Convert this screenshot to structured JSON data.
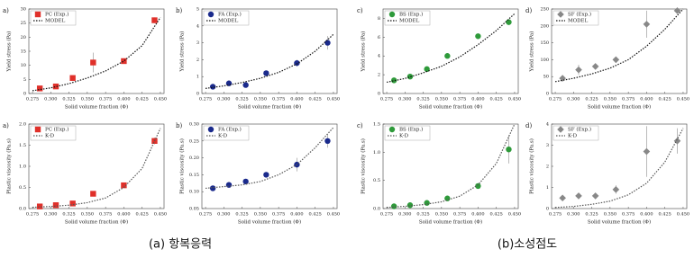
{
  "captions": [
    "(a) 항복응력",
    "(b)소성점도"
  ],
  "chart_data": [
    {
      "type": "scatter",
      "panel": "a)",
      "ylabel": "Yield stress (Pa)",
      "xlabel": "Solid volume fraction (Φ)",
      "xlim": [
        0.27,
        0.455
      ],
      "ylim": [
        0,
        30
      ],
      "xticks": [
        0.275,
        {
          "value": 0.3,
          "label": "0.300"
        },
        0.325,
        {
          "value": 0.35,
          "label": "0.350"
        },
        0.375,
        {
          "value": 0.4,
          "label": "0.400"
        },
        0.425,
        {
          "value": 0.45,
          "label": "0.450"
        }
      ],
      "yticks": [
        0,
        5,
        10,
        15,
        20,
        25,
        30
      ],
      "series": [
        {
          "name": "PC (Exp.)",
          "color": "#e0302a",
          "marker": "square",
          "x": [
            0.285,
            0.307,
            0.33,
            0.358,
            0.4,
            0.442
          ],
          "values": [
            1.8,
            2.5,
            5.5,
            11,
            11.5,
            26
          ],
          "errors": [
            0.3,
            0.3,
            0.6,
            3.5,
            0.6,
            1
          ]
        },
        {
          "name": "MODEL",
          "color": "#111111",
          "marker": "line",
          "x": [
            0.275,
            0.3,
            0.325,
            0.35,
            0.375,
            0.4,
            0.425,
            0.45
          ],
          "values": [
            1,
            2,
            3.5,
            5.5,
            8,
            11.5,
            17,
            27
          ]
        }
      ]
    },
    {
      "type": "scatter",
      "panel": "b)",
      "ylabel": "Yield stress (Pa)",
      "xlabel": "Solid volume fraction (Φ)",
      "xlim": [
        0.27,
        0.455
      ],
      "ylim": [
        0,
        5
      ],
      "xticks": [
        0.275,
        {
          "value": 0.3,
          "label": "0.300"
        },
        0.325,
        {
          "value": 0.35,
          "label": "0.350"
        },
        0.375,
        {
          "value": 0.4,
          "label": "0.400"
        },
        0.425,
        {
          "value": 0.45,
          "label": "0.450"
        }
      ],
      "yticks": [
        0,
        1,
        2,
        3,
        4,
        5
      ],
      "series": [
        {
          "name": "FA (Exp.)",
          "color": "#1a2a8c",
          "marker": "circle",
          "x": [
            0.285,
            0.307,
            0.33,
            0.358,
            0.4,
            0.442
          ],
          "values": [
            0.4,
            0.6,
            0.5,
            1.2,
            1.8,
            3.0
          ],
          "errors": [
            0.05,
            0.1,
            0.1,
            0.15,
            0.2,
            0.4
          ]
        },
        {
          "name": "MODEL",
          "color": "#111111",
          "marker": "line",
          "x": [
            0.275,
            0.3,
            0.325,
            0.35,
            0.375,
            0.4,
            0.425,
            0.45
          ],
          "values": [
            0.3,
            0.45,
            0.65,
            0.9,
            1.25,
            1.75,
            2.5,
            3.5
          ]
        }
      ]
    },
    {
      "type": "scatter",
      "panel": "c)",
      "ylabel": "Yield stress (Pa)",
      "xlabel": "Solid volume fraction (Φ)",
      "xlim": [
        0.27,
        0.455
      ],
      "ylim": [
        0,
        9
      ],
      "xticks": [
        0.275,
        {
          "value": 0.3,
          "label": "0.300"
        },
        0.325,
        {
          "value": 0.35,
          "label": "0.350"
        },
        0.375,
        {
          "value": 0.4,
          "label": "0.400"
        },
        0.425,
        {
          "value": 0.45,
          "label": "0.450"
        }
      ],
      "yticks": [
        0,
        2,
        4,
        6,
        8
      ],
      "series": [
        {
          "name": "BS (Exp.)",
          "color": "#2e9a3a",
          "marker": "circle",
          "x": [
            0.285,
            0.307,
            0.33,
            0.358,
            0.4,
            0.442
          ],
          "values": [
            1.4,
            1.8,
            2.6,
            4.0,
            6.1,
            7.6
          ],
          "errors": [
            0.1,
            0.1,
            0.15,
            0.2,
            0.3,
            0.3
          ]
        },
        {
          "name": "MODEL",
          "color": "#111111",
          "marker": "line",
          "x": [
            0.275,
            0.3,
            0.325,
            0.35,
            0.375,
            0.4,
            0.425,
            0.45
          ],
          "values": [
            1.2,
            1.6,
            2.2,
            2.9,
            3.9,
            5.2,
            6.7,
            8.5
          ]
        }
      ]
    },
    {
      "type": "scatter",
      "panel": "d)",
      "ylabel": "Yield stress (Pa)",
      "xlabel": "Solid volume fraction (Φ)",
      "xlim": [
        0.27,
        0.455
      ],
      "ylim": [
        0,
        250
      ],
      "xticks": [
        0.275,
        {
          "value": 0.3,
          "label": "0.300"
        },
        0.325,
        {
          "value": 0.35,
          "label": "0.350"
        },
        0.375,
        {
          "value": 0.4,
          "label": "0.400"
        },
        0.425,
        {
          "value": 0.45,
          "label": "0.450"
        }
      ],
      "yticks": [
        0,
        50,
        100,
        150,
        200,
        250
      ],
      "series": [
        {
          "name": "SF (Exp.)",
          "color": "#888888",
          "marker": "diamond",
          "x": [
            0.285,
            0.307,
            0.33,
            0.358,
            0.4,
            0.442
          ],
          "values": [
            45,
            70,
            80,
            100,
            205,
            245
          ],
          "errors": [
            8,
            15,
            6,
            5,
            40,
            6
          ]
        },
        {
          "name": "MODEL",
          "color": "#111111",
          "marker": "line",
          "x": [
            0.275,
            0.3,
            0.325,
            0.35,
            0.375,
            0.4,
            0.425,
            0.45
          ],
          "values": [
            35,
            45,
            58,
            75,
            100,
            140,
            190,
            250
          ]
        }
      ]
    },
    {
      "type": "scatter",
      "panel": "a)",
      "ylabel": "Plastic viscosity (Pa.s)",
      "xlabel": "Solid volume fraction (Φ)",
      "xlim": [
        0.27,
        0.455
      ],
      "ylim": [
        0,
        2
      ],
      "xticks": [
        0.275,
        {
          "value": 0.3,
          "label": "0.300"
        },
        0.325,
        {
          "value": 0.35,
          "label": "0.350"
        },
        0.375,
        {
          "value": 0.4,
          "label": "0.400"
        },
        0.425,
        {
          "value": 0.45,
          "label": "0.450"
        }
      ],
      "yticks": [
        {
          "value": 0,
          "label": "0.0"
        },
        0.5,
        {
          "value": 1,
          "label": "1.0"
        },
        1.5,
        {
          "value": 2,
          "label": "2.0"
        }
      ],
      "series": [
        {
          "name": "PC (Exp.)",
          "color": "#e0302a",
          "marker": "square",
          "x": [
            0.285,
            0.307,
            0.33,
            0.358,
            0.4,
            0.442
          ],
          "values": [
            0.05,
            0.08,
            0.12,
            0.35,
            0.55,
            1.6
          ],
          "errors": [
            0.01,
            0.01,
            0.02,
            0.05,
            0.03,
            0.08
          ]
        },
        {
          "name": "K-D",
          "color": "#555555",
          "marker": "line",
          "x": [
            0.275,
            0.3,
            0.325,
            0.35,
            0.375,
            0.4,
            0.425,
            0.45
          ],
          "values": [
            0.03,
            0.05,
            0.08,
            0.14,
            0.25,
            0.5,
            0.95,
            1.9
          ]
        }
      ]
    },
    {
      "type": "scatter",
      "panel": "b)",
      "ylabel": "Plastic viscosity (Pa.s)",
      "xlabel": "Solid volume fraction (Φ)",
      "xlim": [
        0.27,
        0.455
      ],
      "ylim": [
        0.05,
        0.3
      ],
      "xticks": [
        0.275,
        {
          "value": 0.3,
          "label": "0.300"
        },
        0.325,
        {
          "value": 0.35,
          "label": "0.350"
        },
        0.375,
        {
          "value": 0.4,
          "label": "0.400"
        },
        0.425,
        {
          "value": 0.45,
          "label": "0.450"
        }
      ],
      "yticks": [
        0.05,
        {
          "value": 0.1,
          "label": "0.10"
        },
        0.15,
        {
          "value": 0.2,
          "label": "0.20"
        },
        0.25,
        {
          "value": 0.3,
          "label": "0.30"
        }
      ],
      "series": [
        {
          "name": "FA (Exp.)",
          "color": "#1a2a8c",
          "marker": "circle",
          "x": [
            0.285,
            0.307,
            0.33,
            0.358,
            0.4,
            0.442
          ],
          "values": [
            0.11,
            0.12,
            0.13,
            0.15,
            0.18,
            0.25
          ],
          "errors": [
            0.005,
            0.005,
            0.005,
            0.008,
            0.02,
            0.02
          ]
        },
        {
          "name": "K-D",
          "color": "#555555",
          "marker": "line",
          "x": [
            0.275,
            0.3,
            0.325,
            0.35,
            0.375,
            0.4,
            0.425,
            0.45
          ],
          "values": [
            0.11,
            0.115,
            0.12,
            0.13,
            0.15,
            0.18,
            0.23,
            0.29
          ]
        }
      ]
    },
    {
      "type": "scatter",
      "panel": "c)",
      "ylabel": "Plastic viscosity (Pa.s)",
      "xlabel": "Solid volume fraction (Φ)",
      "xlim": [
        0.27,
        0.455
      ],
      "ylim": [
        0,
        1.5
      ],
      "xticks": [
        0.275,
        {
          "value": 0.3,
          "label": "0.300"
        },
        0.325,
        {
          "value": 0.35,
          "label": "0.350"
        },
        0.375,
        {
          "value": 0.4,
          "label": "0.400"
        },
        0.425,
        {
          "value": 0.45,
          "label": "0.450"
        }
      ],
      "yticks": [
        {
          "value": 0,
          "label": "0.0"
        },
        0.5,
        {
          "value": 1,
          "label": "1.0"
        },
        1.5
      ],
      "series": [
        {
          "name": "BS (Exp.)",
          "color": "#2e9a3a",
          "marker": "circle",
          "x": [
            0.285,
            0.307,
            0.33,
            0.358,
            0.4,
            0.442
          ],
          "values": [
            0.04,
            0.06,
            0.1,
            0.18,
            0.4,
            1.05
          ],
          "errors": [
            0.01,
            0.01,
            0.01,
            0.02,
            0.04,
            0.25
          ]
        },
        {
          "name": "K-D",
          "color": "#555555",
          "marker": "line",
          "x": [
            0.275,
            0.3,
            0.325,
            0.35,
            0.375,
            0.4,
            0.425,
            0.45
          ],
          "values": [
            0.02,
            0.04,
            0.07,
            0.12,
            0.22,
            0.42,
            0.8,
            1.5
          ]
        }
      ]
    },
    {
      "type": "scatter",
      "panel": "d)",
      "ylabel": "Plastic viscosity (Pa.s)",
      "xlabel": "Solid volume fraction (Φ)",
      "xlim": [
        0.27,
        0.455
      ],
      "ylim": [
        0,
        4
      ],
      "xticks": [
        0.275,
        {
          "value": 0.3,
          "label": "0.300"
        },
        0.325,
        {
          "value": 0.35,
          "label": "0.350"
        },
        0.375,
        {
          "value": 0.4,
          "label": "0.400"
        },
        0.425,
        {
          "value": 0.45,
          "label": "0.450"
        }
      ],
      "yticks": [
        0,
        1,
        2,
        3,
        4
      ],
      "series": [
        {
          "name": "SF (Exp.)",
          "color": "#888888",
          "marker": "diamond",
          "x": [
            0.285,
            0.307,
            0.33,
            0.358,
            0.4,
            0.442
          ],
          "values": [
            0.5,
            0.6,
            0.6,
            0.9,
            2.7,
            3.2
          ],
          "errors": [
            0.1,
            0.1,
            0.1,
            0.2,
            1.2,
            0.6
          ]
        },
        {
          "name": "K-D",
          "color": "#555555",
          "marker": "line",
          "x": [
            0.275,
            0.3,
            0.325,
            0.35,
            0.375,
            0.4,
            0.425,
            0.45
          ],
          "values": [
            0.05,
            0.1,
            0.2,
            0.35,
            0.65,
            1.2,
            2.2,
            3.8
          ]
        }
      ]
    }
  ]
}
